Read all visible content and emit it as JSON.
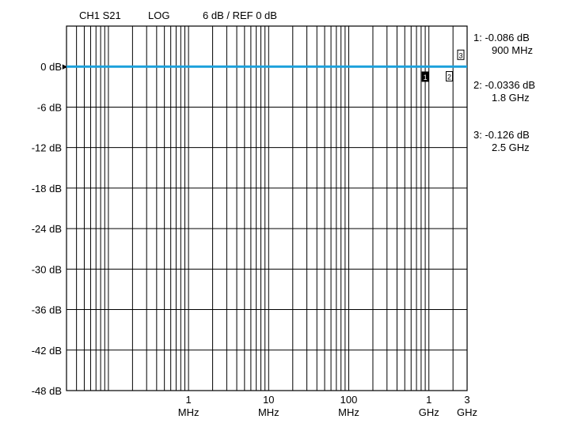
{
  "header": {
    "channel": "CH1 S21",
    "format": "LOG",
    "scale": "6 dB / REF 0 dB"
  },
  "chart_data": {
    "type": "line",
    "x_scale": "log",
    "y_scale": "linear",
    "grid": true,
    "yticks": [
      {
        "value": 0,
        "label": "0 dB"
      },
      {
        "value": -6,
        "label": "-6 dB"
      },
      {
        "value": -12,
        "label": "-12 dB"
      },
      {
        "value": -18,
        "label": "-18 dB"
      },
      {
        "value": -24,
        "label": "-24 dB"
      },
      {
        "value": -30,
        "label": "-30 dB"
      },
      {
        "value": -36,
        "label": "-36 dB"
      },
      {
        "value": -42,
        "label": "-42 dB"
      },
      {
        "value": -48,
        "label": "-48 dB"
      }
    ],
    "ylim": [
      -48,
      6
    ],
    "xlim_hz": [
      30000,
      3000000000
    ],
    "xticks": [
      {
        "value_hz": 1000000,
        "label": [
          "1",
          "MHz"
        ]
      },
      {
        "value_hz": 10000000,
        "label": [
          "10",
          "MHz"
        ]
      },
      {
        "value_hz": 100000000,
        "label": [
          "100",
          "MHz"
        ]
      },
      {
        "value_hz": 1000000000,
        "label": [
          "1",
          "GHz"
        ]
      },
      {
        "value_hz": 3000000000,
        "label": [
          "3",
          "GHz"
        ]
      }
    ],
    "series": [
      {
        "color": "#1aa0dc",
        "x_hz": [
          30000,
          3000000000
        ],
        "y_db": [
          0,
          0
        ]
      }
    ],
    "markers": [
      {
        "id": "1",
        "label": "1",
        "x_hz": 900000000,
        "y_db": -0.086,
        "readout": [
          "1: -0.086 dB",
          "900 MHz"
        ]
      },
      {
        "id": "2",
        "label": "2",
        "x_hz": 1800000000,
        "y_db": -0.0336,
        "readout": [
          "2: -0.0336 dB",
          "1.8 GHz"
        ]
      },
      {
        "id": "3",
        "label": "3",
        "x_hz": 2500000000,
        "y_db": -0.126,
        "readout": [
          "3: -0.126 dB",
          "2.5 GHz"
        ]
      }
    ],
    "reference_marker": "▸"
  }
}
